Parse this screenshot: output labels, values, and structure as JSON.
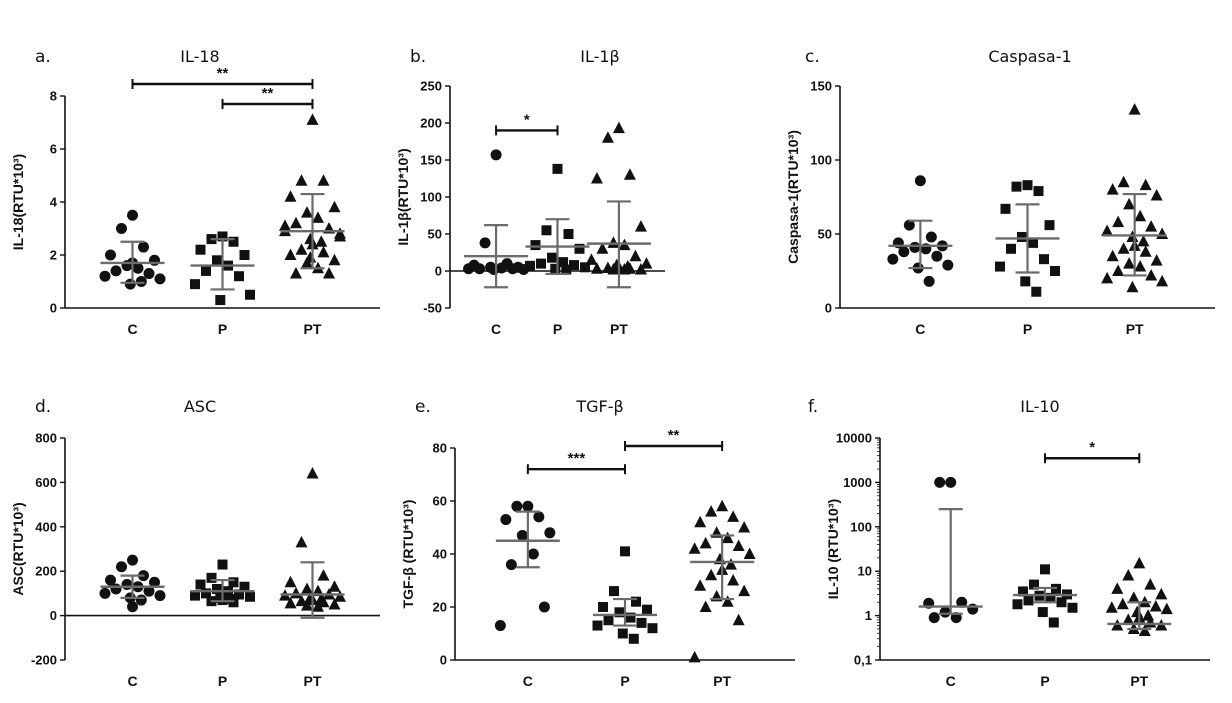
{
  "chart_data": [
    {
      "type": "scatter",
      "letter": "a.",
      "title": "IL-18",
      "ylabel": "IL-18(RTU*10³)",
      "scale": "linear",
      "ylim": [
        0,
        8
      ],
      "yticks": [
        "0",
        "2",
        "4",
        "6",
        "8"
      ],
      "categories": [
        "C",
        "P",
        "PT"
      ],
      "groups": [
        {
          "name": "C",
          "marker": "circle",
          "mean": 1.7,
          "sd_low": 0.95,
          "sd_high": 2.5,
          "values": [
            3.5,
            3.0,
            2.3,
            2.0,
            1.8,
            1.6,
            1.5,
            1.4,
            1.3,
            1.2,
            1.1,
            0.9,
            1.0,
            1.7
          ]
        },
        {
          "name": "P",
          "marker": "square",
          "mean": 1.6,
          "sd_low": 0.7,
          "sd_high": 2.6,
          "values": [
            2.7,
            2.6,
            2.5,
            2.2,
            2.0,
            1.8,
            1.6,
            1.4,
            1.2,
            0.9,
            0.5,
            0.3
          ]
        },
        {
          "name": "PT",
          "marker": "triangle",
          "mean": 2.9,
          "sd_low": 1.5,
          "sd_high": 4.3,
          "values": [
            7.1,
            4.8,
            4.8,
            4.2,
            3.8,
            3.6,
            3.4,
            3.2,
            3.0,
            2.9,
            2.8,
            2.6,
            2.5,
            2.4,
            2.2,
            2.1,
            2.0,
            1.8,
            1.7,
            1.5,
            1.3,
            1.3,
            3.1,
            2.7,
            1.9
          ]
        }
      ],
      "significance": [
        {
          "from": "C",
          "to": "PT",
          "y": 8.4,
          "label": "**"
        },
        {
          "from": "P",
          "to": "PT",
          "y": 7.7,
          "label": "**"
        }
      ]
    },
    {
      "type": "scatter",
      "letter": "b.",
      "title": "IL-1β",
      "ylabel": "IL-1β(RTU*10³)",
      "scale": "linear",
      "ylim": [
        -50,
        250
      ],
      "yticks": [
        "-50",
        "0",
        "50",
        "100",
        "150",
        "200",
        "250"
      ],
      "categories": [
        "C",
        "P",
        "PT"
      ],
      "groups": [
        {
          "name": "C",
          "marker": "circle",
          "mean": 20,
          "sd_low": -22,
          "sd_high": 62,
          "values": [
            157,
            38,
            10,
            8,
            5,
            5,
            4,
            3,
            3,
            3,
            2,
            2
          ]
        },
        {
          "name": "P",
          "marker": "square",
          "mean": 33,
          "sd_low": -4,
          "sd_high": 70,
          "values": [
            138,
            55,
            50,
            35,
            30,
            18,
            12,
            10,
            8,
            7,
            5,
            3,
            2
          ]
        },
        {
          "name": "PT",
          "marker": "triangle",
          "mean": 37,
          "sd_low": -22,
          "sd_high": 94,
          "values": [
            193,
            180,
            130,
            125,
            60,
            38,
            35,
            30,
            20,
            15,
            10,
            8,
            6,
            5,
            4,
            3,
            3,
            2,
            2,
            2
          ]
        }
      ],
      "significance": [
        {
          "from": "C",
          "to": "P",
          "y": 190,
          "label": "*"
        }
      ]
    },
    {
      "type": "scatter",
      "letter": "c.",
      "title": "Caspasa-1",
      "ylabel": "Caspasa-1(RTU*10³)",
      "scale": "linear",
      "ylim": [
        0,
        150
      ],
      "yticks": [
        "0",
        "50",
        "100",
        "150"
      ],
      "categories": [
        "C",
        "P",
        "PT"
      ],
      "groups": [
        {
          "name": "C",
          "marker": "circle",
          "mean": 42,
          "sd_low": 27,
          "sd_high": 59,
          "values": [
            86,
            56,
            48,
            44,
            42,
            41,
            40,
            38,
            35,
            33,
            29,
            27,
            18
          ]
        },
        {
          "name": "P",
          "marker": "square",
          "mean": 47,
          "sd_low": 24,
          "sd_high": 70,
          "values": [
            83,
            82,
            79,
            67,
            56,
            48,
            44,
            40,
            33,
            28,
            25,
            18,
            11
          ]
        },
        {
          "name": "PT",
          "marker": "triangle",
          "mean": 49,
          "sd_low": 22,
          "sd_high": 77,
          "values": [
            134,
            85,
            83,
            80,
            76,
            70,
            62,
            58,
            55,
            52,
            50,
            48,
            45,
            42,
            40,
            38,
            35,
            32,
            30,
            28,
            25,
            22,
            20,
            18,
            14
          ]
        }
      ],
      "significance": []
    },
    {
      "type": "scatter",
      "letter": "d.",
      "title": "ASC",
      "ylabel": "ASC(RTU*10³)",
      "scale": "linear",
      "ylim": [
        -200,
        800
      ],
      "yticks": [
        "-200",
        "0",
        "200",
        "400",
        "600",
        "800"
      ],
      "categories": [
        "C",
        "P",
        "PT"
      ],
      "groups": [
        {
          "name": "C",
          "marker": "circle",
          "mean": 130,
          "sd_low": 80,
          "sd_high": 180,
          "values": [
            250,
            220,
            180,
            160,
            150,
            140,
            130,
            120,
            110,
            100,
            90,
            80,
            70,
            40
          ]
        },
        {
          "name": "P",
          "marker": "square",
          "mean": 110,
          "sd_low": 65,
          "sd_high": 160,
          "values": [
            230,
            170,
            150,
            140,
            130,
            120,
            110,
            100,
            95,
            90,
            85,
            80,
            75,
            70,
            65,
            60
          ]
        },
        {
          "name": "PT",
          "marker": "triangle",
          "mean": 95,
          "sd_low": -10,
          "sd_high": 240,
          "values": [
            640,
            330,
            180,
            150,
            130,
            120,
            110,
            100,
            95,
            90,
            85,
            80,
            75,
            70,
            65,
            60,
            55,
            50,
            45,
            40
          ]
        }
      ],
      "significance": []
    },
    {
      "type": "scatter",
      "letter": "e.",
      "title": "TGF-β",
      "ylabel": "TGF-β (RTU*10³)",
      "scale": "linear",
      "ylim": [
        0,
        80
      ],
      "yticks": [
        "0",
        "20",
        "40",
        "60",
        "80"
      ],
      "categories": [
        "C",
        "P",
        "PT"
      ],
      "groups": [
        {
          "name": "C",
          "marker": "circle",
          "mean": 45,
          "sd_low": 35,
          "sd_high": 56,
          "values": [
            58,
            58,
            54,
            53,
            48,
            47,
            40,
            36,
            20,
            13
          ]
        },
        {
          "name": "P",
          "marker": "square",
          "mean": 17,
          "sd_low": 13,
          "sd_high": 23,
          "values": [
            41,
            26,
            22,
            20,
            19,
            18,
            16,
            15,
            14,
            13,
            12,
            10,
            8
          ]
        },
        {
          "name": "PT",
          "marker": "triangle",
          "mean": 37,
          "sd_low": 23,
          "sd_high": 47,
          "values": [
            58,
            56,
            54,
            52,
            50,
            48,
            46,
            44,
            43,
            42,
            40,
            38,
            36,
            34,
            32,
            30,
            28,
            26,
            24,
            22,
            20,
            15,
            1
          ]
        }
      ],
      "significance": [
        {
          "from": "C",
          "to": "P",
          "y": 72,
          "label": "***"
        },
        {
          "from": "P",
          "to": "PT",
          "y": 82,
          "label": "**"
        }
      ]
    },
    {
      "type": "scatter",
      "letter": "f.",
      "title": "IL-10",
      "ylabel": "IL-10 (RTU*10³)",
      "scale": "log",
      "ylim": [
        0.1,
        10000
      ],
      "yticks": [
        "0,1",
        "1",
        "10",
        "100",
        "1000",
        "10000"
      ],
      "categories": [
        "C",
        "P",
        "PT"
      ],
      "groups": [
        {
          "name": "C",
          "marker": "circle",
          "mean": 1.6,
          "sd_low": 1.1,
          "sd_high": 250,
          "values": [
            1000,
            1000,
            2.0,
            1.9,
            1.4,
            1.2,
            0.9,
            0.9
          ]
        },
        {
          "name": "P",
          "marker": "square",
          "mean": 2.9,
          "sd_low": 2.0,
          "sd_high": 4.2,
          "values": [
            11,
            5.0,
            4.0,
            3.5,
            3.0,
            2.8,
            2.5,
            2.2,
            2.0,
            1.8,
            1.5,
            1.2,
            0.7
          ]
        },
        {
          "name": "PT",
          "marker": "triangle",
          "mean": 0.65,
          "sd_low": 0.5,
          "sd_high": 2.0,
          "values": [
            15,
            8,
            5,
            4,
            3,
            2.5,
            2,
            1.8,
            1.6,
            1.5,
            1.4,
            1.2,
            1.0,
            0.9,
            0.8,
            0.7,
            0.6,
            0.6,
            0.5,
            0.45
          ]
        }
      ],
      "significance": [
        {
          "from": "P",
          "to": "PT",
          "y": 3500,
          "label": "*"
        }
      ]
    }
  ]
}
